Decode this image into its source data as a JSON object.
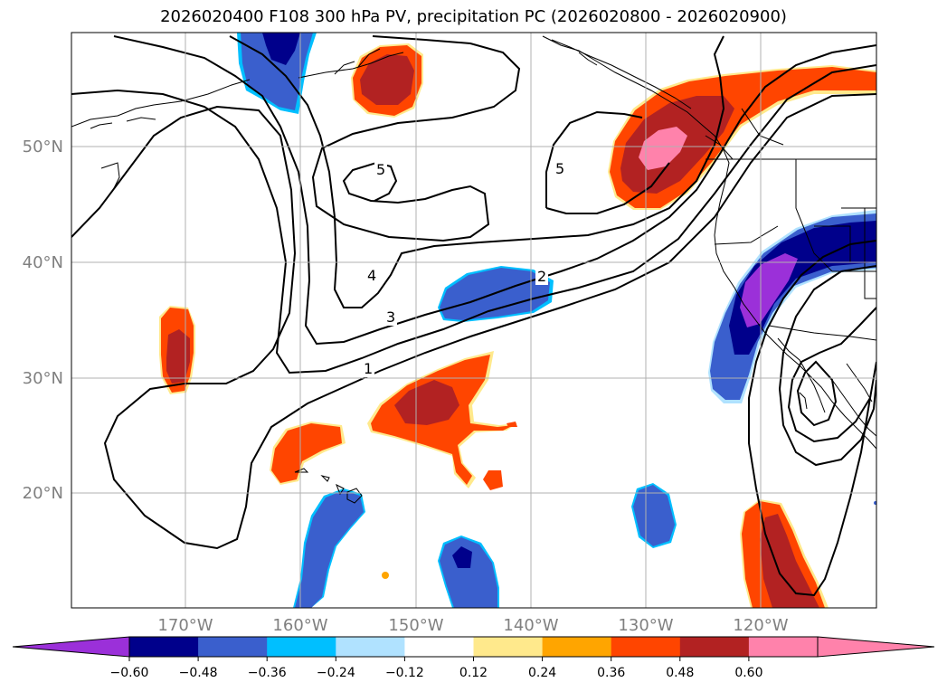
{
  "title": "2026020400 F108 300 hPa PV, precipitation PC (2026020800 - 2026020900)",
  "lat_labels": [
    "50°N",
    "40°N",
    "30°N",
    "20°N"
  ],
  "lon_labels": [
    "170°W",
    "160°W",
    "150°W",
    "140°W",
    "130°W",
    "120°W"
  ],
  "contour_labels": [
    "5",
    "5",
    "4",
    "3",
    "2",
    "1"
  ],
  "colorbar": {
    "ticks": [
      "−0.60",
      "−0.48",
      "−0.36",
      "−0.24",
      "−0.12",
      "0.12",
      "0.24",
      "0.36",
      "0.48",
      "0.60"
    ],
    "colors": [
      "#9b30d9",
      "#00008b",
      "#3a5fcd",
      "#00bfff",
      "#b0e2ff",
      "#ffffff",
      "#ffe98c",
      "#ffa500",
      "#ff4500",
      "#b22222",
      "#ff82ab",
      "#ff82ab"
    ]
  },
  "colors": {
    "purple": "#9b30d9",
    "navy": "#00008b",
    "blue": "#3a5fcd",
    "sky": "#00bfff",
    "lightblue": "#b0e2ff",
    "yellow": "#ffe98c",
    "orange": "#ffa500",
    "redorange": "#ff4500",
    "firebrick": "#b22222",
    "pink": "#ff82ab",
    "grid": "#b0b0b0",
    "contour": "#000000"
  }
}
